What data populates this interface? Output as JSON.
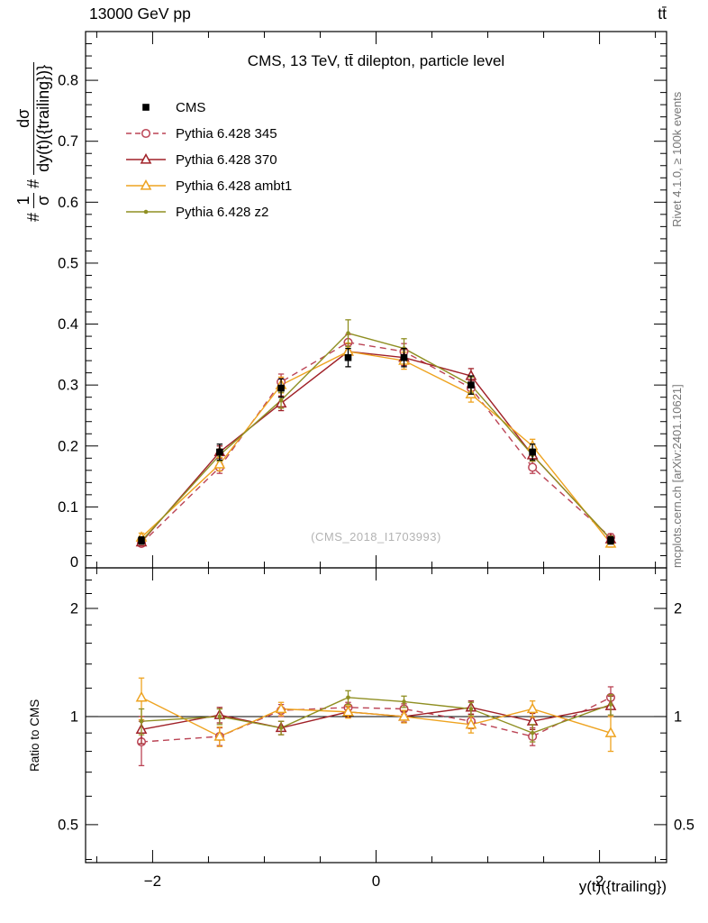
{
  "header": {
    "left_title": "13000 GeV pp",
    "right_title": "tt̄"
  },
  "sidebar_right": {
    "top_text": "Rivet 4.1.0, ≥ 100k events",
    "bottom_text": "mcplots.cern.ch [arXiv:2401.10621]"
  },
  "main_panel": {
    "title": "CMS, 13 TeV, tt̄ dilepton, particle level",
    "watermark": "(CMS_2018_I1703993)",
    "ylabel": {
      "hash1": "#",
      "frac1_num": "1",
      "frac1_den": "σ",
      "hash2": "#",
      "frac2_num": "dσ",
      "frac2_den": "dy(t)({trailing})}"
    }
  },
  "ratio_panel": {
    "ylabel": "Ratio to CMS"
  },
  "xaxis": {
    "label": "y(t)({trailing})"
  },
  "colors": {
    "cms": "#000000",
    "pythia_345": "#bb4455",
    "pythia_370": "#a02128",
    "pythia_ambt1": "#eea320",
    "pythia_z2": "#8f8f22",
    "frame": "#000000",
    "watermark": "#b3b3b3",
    "side_text": "#767676"
  },
  "chart_data": [
    {
      "type": "line",
      "id": "main",
      "title": "CMS, 13 TeV, tt̄ dilepton, particle level",
      "xlabel": "y(t)({trailing})",
      "ylabel": "1/σ dσ/dy(t)({trailing})",
      "xlim": [
        -2.6,
        2.6
      ],
      "ylim": [
        0,
        0.88
      ],
      "grid": false,
      "legend_position": "top-left",
      "xticks": {
        "major": [
          -2,
          0,
          2
        ],
        "labels": [
          "−2",
          "0",
          "2"
        ],
        "minor_step": 0.5
      },
      "yticks": {
        "major": [
          0,
          0.1,
          0.2,
          0.3,
          0.4,
          0.5,
          0.6,
          0.7,
          0.8
        ],
        "labels": [
          "0",
          "0.1",
          "0.2",
          "0.3",
          "0.4",
          "0.5",
          "0.6",
          "0.7",
          "0.8"
        ],
        "minor_step": 0.02
      },
      "x": [
        -2.1,
        -1.4,
        -0.85,
        -0.25,
        0.25,
        0.85,
        1.4,
        2.1
      ],
      "series": [
        {
          "name": "CMS",
          "color": "#000000",
          "marker": "square-filled",
          "line": "none",
          "values": [
            0.045,
            0.19,
            0.295,
            0.345,
            0.345,
            0.3,
            0.19,
            0.045
          ],
          "errors": [
            0.006,
            0.013,
            0.015,
            0.015,
            0.015,
            0.015,
            0.013,
            0.006
          ]
        },
        {
          "name": "Pythia 6.428 345",
          "color": "#bb4455",
          "marker": "circle-open",
          "line": "dashed",
          "values": [
            0.04,
            0.165,
            0.305,
            0.37,
            0.355,
            0.295,
            0.165,
            0.05
          ],
          "errors": [
            0.005,
            0.01,
            0.013,
            0.013,
            0.013,
            0.012,
            0.01,
            0.006
          ]
        },
        {
          "name": "Pythia 6.428 370",
          "color": "#a02128",
          "marker": "triangle-open",
          "line": "solid",
          "values": [
            0.042,
            0.19,
            0.27,
            0.355,
            0.345,
            0.315,
            0.185,
            0.047
          ],
          "errors": [
            0.005,
            0.01,
            0.012,
            0.013,
            0.013,
            0.012,
            0.01,
            0.005
          ]
        },
        {
          "name": "Pythia 6.428 ambt1",
          "color": "#eea320",
          "marker": "triangle-open",
          "line": "solid",
          "values": [
            0.05,
            0.17,
            0.3,
            0.355,
            0.34,
            0.285,
            0.2,
            0.04
          ],
          "errors": [
            0.007,
            0.011,
            0.013,
            0.014,
            0.014,
            0.013,
            0.011,
            0.006
          ]
        },
        {
          "name": "Pythia 6.428 z2",
          "color": "#8f8f22",
          "marker": "dot-filled",
          "line": "solid",
          "values": [
            0.044,
            0.185,
            0.275,
            0.385,
            0.36,
            0.3,
            0.185,
            0.047
          ],
          "errors": [
            0.005,
            0.01,
            0.013,
            0.022,
            0.016,
            0.013,
            0.01,
            0.005
          ]
        }
      ]
    },
    {
      "type": "line",
      "id": "ratio",
      "ylabel": "Ratio to CMS",
      "yscale": "log",
      "xlim": [
        -2.6,
        2.6
      ],
      "ylim": [
        0.392,
        2.594
      ],
      "reference_line": 1,
      "yticks": {
        "major": [
          0.5,
          1,
          2
        ],
        "labels": [
          "0.5",
          "1",
          "2"
        ],
        "minor": [
          0.4,
          0.6,
          0.7,
          0.8,
          0.9,
          1.2,
          1.4,
          1.6,
          1.8,
          2.2,
          2.4
        ]
      },
      "x": [
        -2.1,
        -1.4,
        -0.85,
        -0.25,
        0.25,
        0.85,
        1.4,
        2.1
      ],
      "series": [
        {
          "name": "Pythia 6.428 345",
          "color": "#bb4455",
          "marker": "circle-open",
          "line": "dashed",
          "values": [
            0.85,
            0.88,
            1.04,
            1.06,
            1.05,
            0.97,
            0.88,
            1.13
          ],
          "errors": [
            0.12,
            0.05,
            0.04,
            0.035,
            0.035,
            0.045,
            0.05,
            0.08
          ]
        },
        {
          "name": "Pythia 6.428 370",
          "color": "#a02128",
          "marker": "triangle-open",
          "line": "solid",
          "values": [
            0.92,
            1.01,
            0.93,
            1.03,
            1.0,
            1.06,
            0.97,
            1.07
          ],
          "errors": [
            0.08,
            0.05,
            0.04,
            0.035,
            0.035,
            0.045,
            0.05,
            0.07
          ]
        },
        {
          "name": "Pythia 6.428 ambt1",
          "color": "#eea320",
          "marker": "triangle-open",
          "line": "solid",
          "values": [
            1.13,
            0.88,
            1.05,
            1.03,
            1.0,
            0.95,
            1.05,
            0.9
          ],
          "errors": [
            0.15,
            0.055,
            0.045,
            0.04,
            0.04,
            0.05,
            0.055,
            0.1
          ]
        },
        {
          "name": "Pythia 6.428 z2",
          "color": "#8f8f22",
          "marker": "dot-filled",
          "line": "solid",
          "values": [
            0.97,
            1.0,
            0.93,
            1.13,
            1.1,
            1.05,
            0.9,
            1.08
          ],
          "errors": [
            0.08,
            0.05,
            0.04,
            0.05,
            0.04,
            0.045,
            0.05,
            0.07
          ]
        }
      ]
    }
  ]
}
